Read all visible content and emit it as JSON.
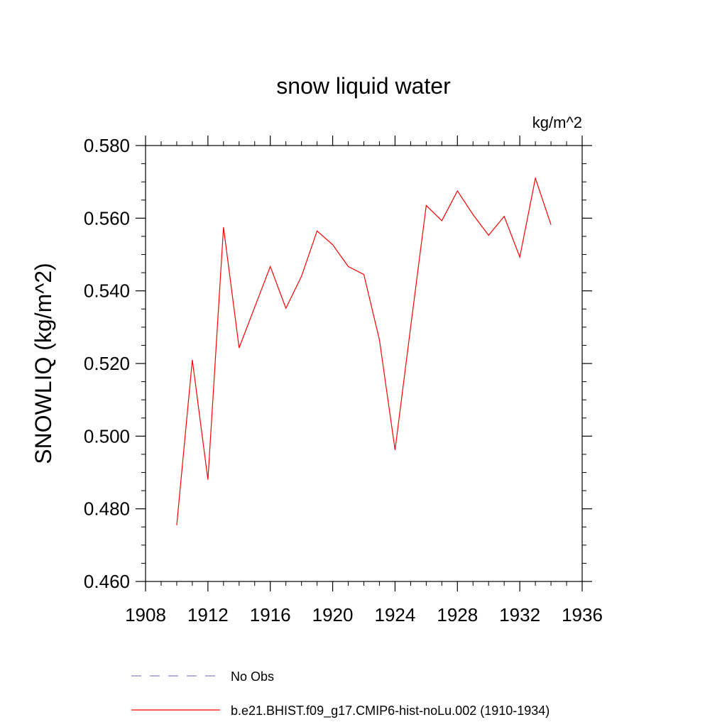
{
  "chart_data": {
    "type": "line",
    "title": "snow liquid water",
    "units_label": "kg/m^2",
    "ylabel": "SNOWLIQ  (kg/m^2)",
    "xlabel": "",
    "xlim": [
      1908,
      1936
    ],
    "ylim": [
      0.46,
      0.58
    ],
    "x_ticks": [
      1908,
      1912,
      1916,
      1920,
      1924,
      1928,
      1932,
      1936
    ],
    "x_tick_labels": [
      "1908",
      "1912",
      "1916",
      "1920",
      "1924",
      "1928",
      "1932",
      "1936"
    ],
    "y_ticks": [
      0.46,
      0.48,
      0.5,
      0.52,
      0.54,
      0.56,
      0.58
    ],
    "y_tick_labels": [
      "0.460",
      "0.480",
      "0.500",
      "0.520",
      "0.540",
      "0.560",
      "0.580"
    ],
    "grid": false,
    "legend_position": "bottom",
    "series": [
      {
        "name": "b.e21.BHIST.f09_g17.CMIP6-hist-noLu.002 (1910-1934)",
        "color": "#ff0000",
        "dash": "solid",
        "x": [
          1910,
          1911,
          1912,
          1913,
          1914,
          1915,
          1916,
          1917,
          1918,
          1919,
          1920,
          1921,
          1922,
          1923,
          1924,
          1925,
          1926,
          1927,
          1928,
          1929,
          1930,
          1931,
          1932,
          1933,
          1934
        ],
        "y": [
          0.4755,
          0.521,
          0.488,
          0.5575,
          0.5243,
          0.5355,
          0.5467,
          0.5352,
          0.544,
          0.5565,
          0.5527,
          0.5467,
          0.5445,
          0.5265,
          0.4962,
          0.53,
          0.5635,
          0.5593,
          0.5675,
          0.561,
          0.5553,
          0.5605,
          0.5493,
          0.571,
          0.5582
        ]
      }
    ],
    "legend": [
      {
        "label": "No Obs",
        "color": "#8a80c8",
        "dash": "dashed"
      },
      {
        "label": "b.e21.BHIST.f09_g17.CMIP6-hist-noLu.002 (1910-1934)",
        "color": "#ff0000",
        "dash": "solid"
      }
    ]
  }
}
